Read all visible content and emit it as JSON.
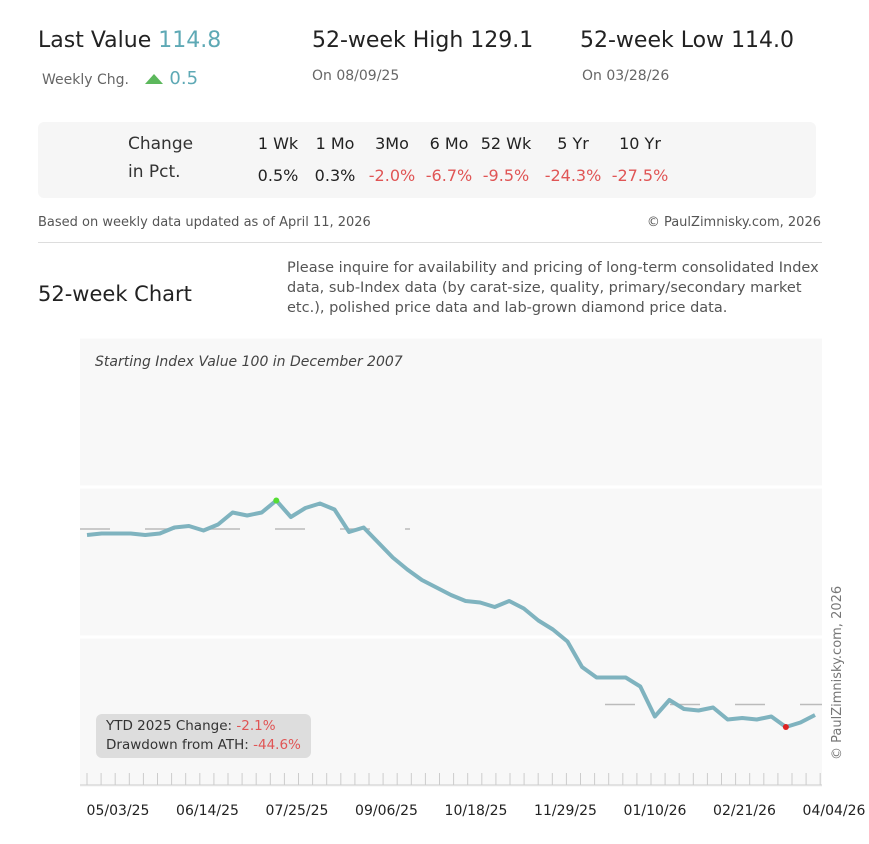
{
  "header": {
    "last_label": "Last Value",
    "last_value": "114.8",
    "weekly_label": "Weekly Chg.",
    "weekly_value": "0.5",
    "high_label": "52-week High",
    "high_value": "129.1",
    "high_date": "On 08/09/25",
    "low_label": "52-week Low",
    "low_value": "114.0",
    "low_date": "On 03/28/26"
  },
  "change": {
    "label1": "Change",
    "label2": "in Pct.",
    "periods": [
      {
        "p": "1 Wk",
        "v": "0.5%",
        "neg": false
      },
      {
        "p": "1 Mo",
        "v": "0.3%",
        "neg": false
      },
      {
        "p": "3Mo",
        "v": "-2.0%",
        "neg": true
      },
      {
        "p": "6 Mo",
        "v": "-6.7%",
        "neg": true
      },
      {
        "p": "52 Wk",
        "v": "-9.5%",
        "neg": true
      },
      {
        "p": "5 Yr",
        "v": "-24.3%",
        "neg": true
      },
      {
        "p": "10 Yr",
        "v": "-27.5%",
        "neg": true
      }
    ]
  },
  "footer": {
    "based": "Based on weekly data updated as of April 11, 2026",
    "copyright": "© PaulZimnisky.com, 2026"
  },
  "section_title": "52-week Chart",
  "inquiry": "Please inquire for availability and pricing of long-term consolidated Index data, sub-Index data (by carat-size, quality, primary/secondary market etc.), polished price data and lab-grown diamond price data.",
  "colors": {
    "line": "#7fb3bf",
    "up": "#5cb85c",
    "down": "#e05555",
    "high_marker": "#55dd33",
    "low_marker": "#dd2222"
  },
  "chart_data": {
    "type": "line",
    "title": "Starting Index Value 100 in December 2007",
    "ylim": [
      110,
      140
    ],
    "gridlines": [
      120,
      130,
      140
    ],
    "reference_lines": [
      127.2,
      115.5
    ],
    "x_tick_labels": [
      "05/03/25",
      "06/14/25",
      "07/25/25",
      "09/06/25",
      "10/18/25",
      "11/29/25",
      "01/10/26",
      "02/21/26",
      "04/04/26"
    ],
    "values": [
      126.8,
      126.9,
      126.9,
      126.9,
      126.8,
      126.9,
      127.3,
      127.4,
      127.1,
      127.5,
      128.3,
      128.1,
      128.3,
      129.1,
      128.0,
      128.6,
      128.9,
      128.5,
      127.0,
      127.3,
      126.3,
      125.3,
      124.5,
      123.8,
      123.3,
      122.8,
      122.4,
      122.3,
      122.0,
      122.4,
      121.9,
      121.1,
      120.5,
      119.7,
      118.0,
      117.3,
      117.3,
      117.3,
      116.7,
      114.7,
      115.8,
      115.2,
      115.1,
      115.3,
      114.5,
      114.6,
      114.5,
      114.7,
      114.0,
      114.3,
      114.8
    ],
    "high_index": 13,
    "low_index": 48,
    "annotation": {
      "ytd_label": "YTD 2025 Change:",
      "ytd_value": "-2.1%",
      "dd_label": "Drawdown from ATH:",
      "dd_value": "-44.6%"
    },
    "watermark": "© PaulZimnisky.com, 2026"
  }
}
